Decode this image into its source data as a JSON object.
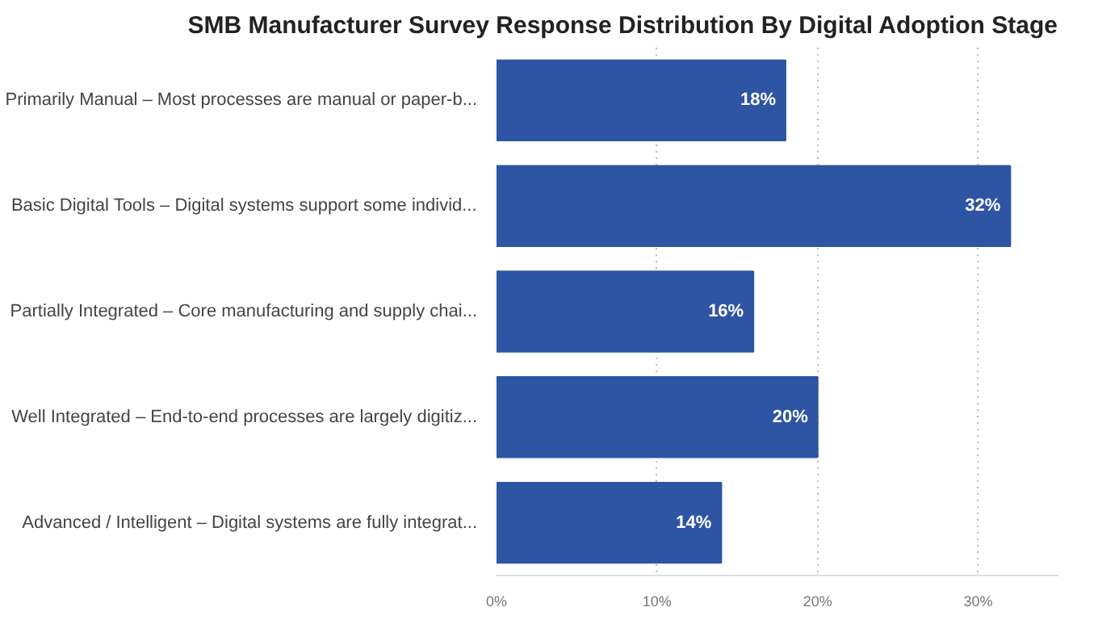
{
  "chart_data": {
    "type": "bar",
    "orientation": "horizontal",
    "title": "SMB Manufacturer Survey Response Distribution By Digital Adoption Stage",
    "categories": [
      "Primarily Manual – Most processes are manual or paper-b...",
      "Basic Digital Tools – Digital systems support some individ...",
      "Partially Integrated – Core manufacturing and supply chai...",
      "Well Integrated – End-to-end processes are largely digitiz...",
      "Advanced / Intelligent – Digital systems are fully integrat..."
    ],
    "values": [
      18,
      32,
      16,
      20,
      14
    ],
    "value_labels": [
      "18%",
      "32%",
      "16%",
      "20%",
      "14%"
    ],
    "color": "#2e54a4",
    "xlim": [
      0,
      35
    ],
    "xticks": [
      {
        "value": 0,
        "label": "0%"
      },
      {
        "value": 10,
        "label": "10%"
      },
      {
        "value": 20,
        "label": "20%"
      },
      {
        "value": 30,
        "label": "30%"
      }
    ],
    "grid": "x"
  }
}
